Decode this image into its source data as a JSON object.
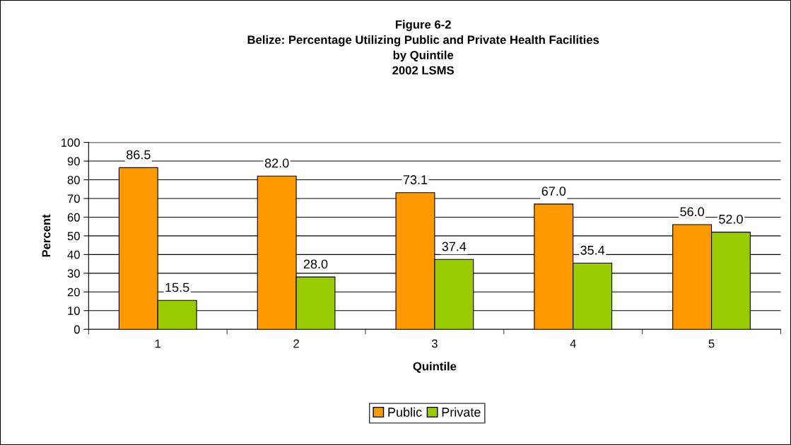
{
  "chart_data": {
    "type": "bar",
    "title": "Figure 6-2\nBelize: Percentage Utilizing Public and Private Health Facilities\nby Quintile\n2002 LSMS",
    "xlabel": "Quintile",
    "ylabel": "Percent",
    "categories": [
      "1",
      "2",
      "3",
      "4",
      "5"
    ],
    "series": [
      {
        "name": "Public",
        "color": "#ff9900",
        "values": [
          86.5,
          82.0,
          73.1,
          67.0,
          56.0
        ],
        "value_labels": [
          "86.5",
          "82.0",
          "73.1",
          "67.0",
          "56.0"
        ]
      },
      {
        "name": "Private",
        "color": "#99cc00",
        "values": [
          15.5,
          28.0,
          37.4,
          35.4,
          52.0
        ],
        "value_labels": [
          "15.5",
          "28.0",
          "37.4",
          "35.4",
          "52.0"
        ]
      }
    ],
    "ylim": [
      0,
      100
    ],
    "yticks": [
      0,
      10,
      20,
      30,
      40,
      50,
      60,
      70,
      80,
      90,
      100
    ],
    "grid": "y",
    "legend": "bottom"
  }
}
